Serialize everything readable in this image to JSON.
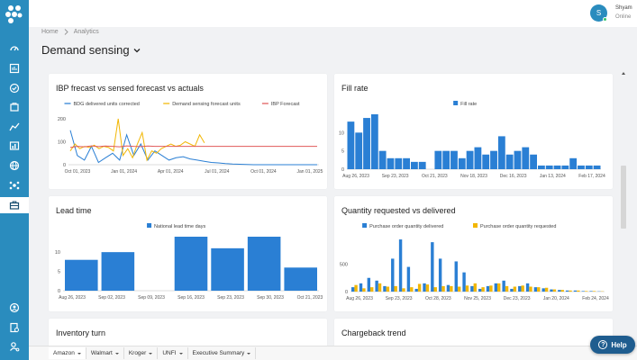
{
  "user": {
    "initial": "S",
    "name": "Shyam",
    "status": "Online"
  },
  "breadcrumb": {
    "home": "Home",
    "current": "Analytics"
  },
  "page": {
    "title": "Demand sensing"
  },
  "colors": {
    "sidebar": "#2a8cbe",
    "bar_blue": "#2a7fd4",
    "yellow": "#f2b705",
    "red": "#e05a5a",
    "help": "#1f5d8f"
  },
  "cards": {
    "ibp": {
      "title": "IBP frecast vs sensed forecast vs actuals"
    },
    "fill": {
      "title": "Fill rate"
    },
    "lead": {
      "title": "Lead time"
    },
    "qty": {
      "title": "Quantity requested vs delivered"
    },
    "inv": {
      "title": "Inventory turn"
    },
    "charge": {
      "title": "Chargeback trend"
    }
  },
  "chart_data": [
    {
      "id": "ibp",
      "type": "line",
      "title": "IBP frecast vs sensed forecast vs actuals",
      "ylim": [
        0,
        200
      ],
      "yticks": [
        0,
        100,
        200
      ],
      "xlabels": [
        "Oct 01, 2023",
        "Jan 01, 2024",
        "Apr 01, 2024",
        "Jul 01, 2024",
        "Oct 01, 2024",
        "Jan 01, 2025"
      ],
      "series": [
        {
          "name": "BDG delivered units corrected",
          "color": "#2a7fd4",
          "values": [
            150,
            40,
            20,
            80,
            10,
            30,
            50,
            20,
            130,
            40,
            90,
            20,
            60,
            40,
            20,
            30,
            35,
            25,
            20,
            15,
            10,
            8,
            5,
            3,
            2,
            1,
            0,
            0,
            0,
            0,
            0,
            0,
            0,
            0,
            0,
            0
          ]
        },
        {
          "name": "Demand sensing forecast units",
          "color": "#f2b705",
          "values": [
            60,
            90,
            70,
            80,
            75,
            85,
            70,
            80,
            75,
            60,
            200,
            40,
            70,
            30,
            90,
            140,
            20,
            60,
            50,
            70,
            80,
            90,
            80,
            85,
            100,
            90,
            80,
            130,
            95
          ]
        },
        {
          "name": "IBP Forecast",
          "color": "#e05a5a",
          "values": [
            75,
            80,
            78,
            82,
            79,
            81,
            80,
            78,
            82,
            80,
            79,
            81,
            80,
            80,
            80,
            80,
            80,
            80,
            80,
            80,
            80,
            80,
            80,
            80,
            80,
            80,
            80,
            80,
            80,
            80,
            80,
            80,
            80,
            80,
            80,
            80
          ]
        }
      ]
    },
    {
      "id": "fill",
      "type": "bar",
      "title": "Fill rate",
      "ylim": [
        0,
        15
      ],
      "yticks": [
        0,
        5,
        10
      ],
      "series": [
        {
          "name": "Fill rate",
          "color": "#2a7fd4"
        }
      ],
      "values": [
        13,
        10,
        14,
        15,
        5,
        3,
        3,
        3,
        2,
        2,
        0,
        5,
        5,
        5,
        3,
        5,
        6,
        4,
        5,
        9,
        4,
        5,
        6,
        4,
        1,
        1,
        1,
        1,
        3,
        1,
        1,
        1
      ],
      "xlabels": [
        "Aug 26, 2023",
        "Sep 23, 2023",
        "Oct 21, 2023",
        "Nov 18, 2023",
        "Dec 16, 2023",
        "Jan 13, 2024",
        "Feb 17, 2024"
      ]
    },
    {
      "id": "lead",
      "type": "bar",
      "title": "Lead time",
      "ylim": [
        0,
        14
      ],
      "yticks": [
        0,
        5,
        10
      ],
      "series": [
        {
          "name": "National lead time days",
          "color": "#2a7fd4"
        }
      ],
      "values": [
        8,
        10,
        0,
        14,
        11,
        14,
        6
      ],
      "xlabels": [
        "Aug 26, 2023",
        "Sep 02, 2023",
        "Sep 09, 2023",
        "Sep 16, 2023",
        "Sep 23, 2023",
        "Sep 30, 2023",
        "Oct 21, 2023"
      ]
    },
    {
      "id": "qty",
      "type": "bar",
      "title": "Quantity requested vs delivered",
      "ylim": [
        0,
        1000
      ],
      "yticks": [
        0,
        500
      ],
      "series": [
        {
          "name": "Purchase order quantity delivered",
          "color": "#2a7fd4",
          "values": [
            80,
            150,
            250,
            200,
            100,
            600,
            950,
            450,
            50,
            150,
            900,
            600,
            120,
            550,
            350,
            100,
            50,
            100,
            150,
            200,
            50,
            100,
            150,
            80,
            60,
            40,
            30,
            20,
            20,
            10,
            10,
            5
          ]
        },
        {
          "name": "Purchase order quantity requested",
          "color": "#f2b705",
          "values": [
            120,
            60,
            80,
            150,
            90,
            100,
            60,
            80,
            140,
            130,
            80,
            100,
            100,
            90,
            110,
            150,
            80,
            110,
            150,
            100,
            90,
            110,
            90,
            80,
            70,
            40,
            30,
            20,
            20,
            10,
            10,
            5
          ]
        }
      ],
      "xlabels": [
        "Aug 26, 2023",
        "Sep 23, 2023",
        "Oct 28, 2023",
        "Nov 25, 2023",
        "Dec 23, 2023",
        "Jan 20, 2024",
        "Feb 24, 2024"
      ]
    }
  ],
  "tabs": [
    {
      "label": "Amazon"
    },
    {
      "label": "Walmart"
    },
    {
      "label": "Kroger"
    },
    {
      "label": "UNFI"
    },
    {
      "label": "Executive Summary"
    }
  ],
  "help": {
    "label": "Help"
  }
}
